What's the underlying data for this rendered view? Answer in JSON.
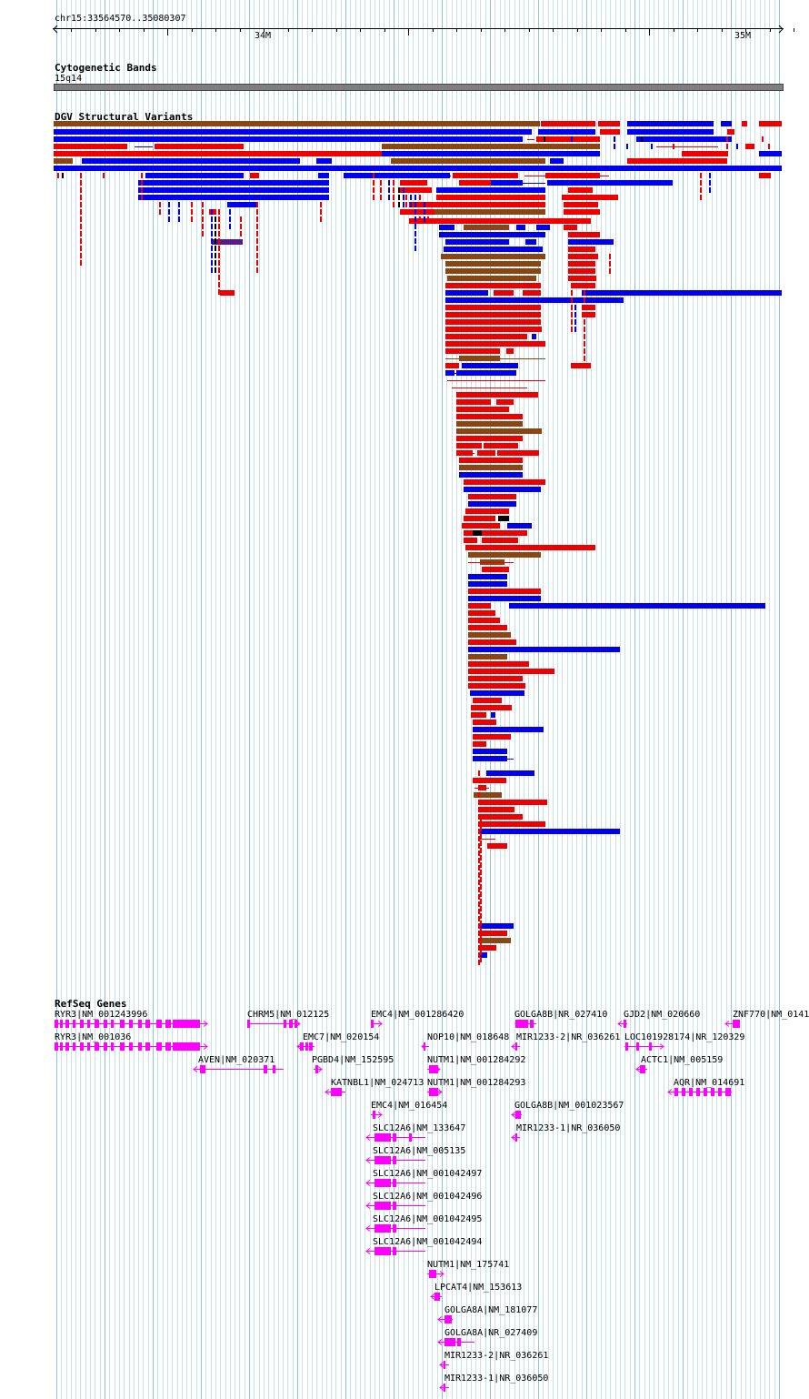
{
  "ruler": {
    "region": "chr15:33564570..35080307",
    "ticks": [
      {
        "label": "34M"
      },
      {
        "label": "35M"
      }
    ]
  },
  "cytoband": {
    "title": "Cytogenetic Bands",
    "band": "15q14"
  },
  "dgv": {
    "title": "DGV Structural Variants",
    "colors": {
      "gain": "#0000ee",
      "loss": "#ee0000",
      "both": "#8b4513",
      "inversion": "#551a8b",
      "other": "#000000"
    }
  },
  "refseq": {
    "title": "RefSeq Genes",
    "color": "#ff00ff",
    "genes": [
      {
        "label": "RYR3|NM_001243996"
      },
      {
        "label": "CHRM5|NM_012125"
      },
      {
        "label": "EMC4|NM_001286420"
      },
      {
        "label": "GOLGA8B|NR_027410"
      },
      {
        "label": "GJD2|NM_020660"
      },
      {
        "label": "ZNF770|NM_0141"
      },
      {
        "label": "RYR3|NM_001036"
      },
      {
        "label": "EMC7|NM_020154"
      },
      {
        "label": "NOP10|NM_018648"
      },
      {
        "label": "MIR1233-2|NR_036261"
      },
      {
        "label": "LOC101928174|NR_120329"
      },
      {
        "label": "AVEN|NM_020371"
      },
      {
        "label": "PGBD4|NM_152595"
      },
      {
        "label": "NUTM1|NM_001284292"
      },
      {
        "label": "ACTC1|NM_005159"
      },
      {
        "label": "KATNBL1|NM_024713"
      },
      {
        "label": "NUTM1|NM_001284293"
      },
      {
        "label": "AQR|NM_014691"
      },
      {
        "label": "EMC4|NM_016454"
      },
      {
        "label": "GOLGA8B|NM_001023567"
      },
      {
        "label": "SLC12A6|NM_133647"
      },
      {
        "label": "MIR1233-1|NR_036050"
      },
      {
        "label": "SLC12A6|NM_005135"
      },
      {
        "label": "SLC12A6|NM_001042497"
      },
      {
        "label": "SLC12A6|NM_001042496"
      },
      {
        "label": "SLC12A6|NM_001042495"
      },
      {
        "label": "SLC12A6|NM_001042494"
      },
      {
        "label": "NUTM1|NM_175741"
      },
      {
        "label": "LPCAT4|NM_153613"
      },
      {
        "label": "GOLGA8A|NM_181077"
      },
      {
        "label": "GOLGA8A|NR_027409"
      },
      {
        "label": "MIR1233-2|NR_036261"
      },
      {
        "label": "MIR1233-1|NR_036050"
      }
    ]
  }
}
